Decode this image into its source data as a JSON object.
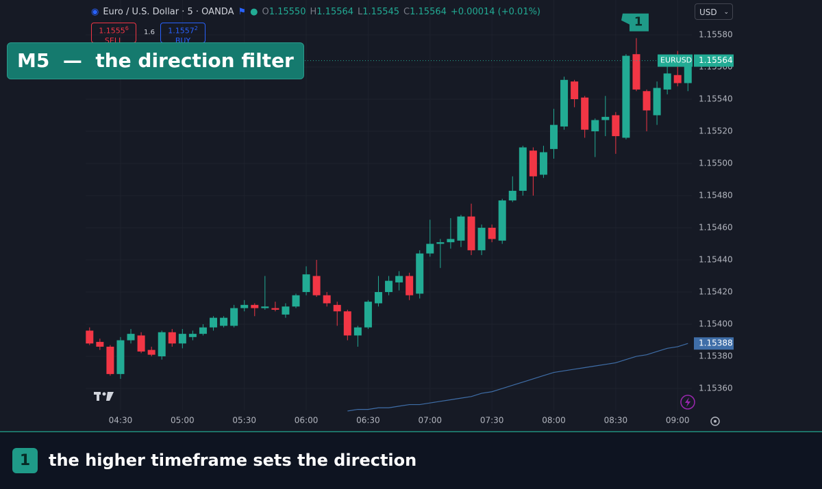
{
  "header": {
    "symbol": "Euro / U.S. Dollar · 5 · OANDA",
    "ohlc": [
      {
        "label": "O",
        "value": "1.15550"
      },
      {
        "label": "H",
        "value": "1.15564"
      },
      {
        "label": "L",
        "value": "1.15545"
      },
      {
        "label": "C",
        "value": "1.15564"
      }
    ],
    "change": "+0.00014 (+0.01%)",
    "currency": "USD"
  },
  "trade": {
    "sell_price": "1.1555",
    "sell_pip": "6",
    "sell_label": "SELL",
    "spread": "1.6",
    "buy_price": "1.1557",
    "buy_pip": "2",
    "buy_label": "BUY"
  },
  "overlay_title": "M5  —  the direction filter",
  "caption": {
    "badge": "1",
    "text": "the higher timeframe sets the direction"
  },
  "chart_data": {
    "type": "candlestick",
    "categories": [
      null,
      null,
      null,
      "04:30",
      null,
      null,
      null,
      null,
      null,
      "05:00",
      null,
      null,
      null,
      null,
      null,
      "05:30",
      null,
      null,
      null,
      null,
      null,
      "06:00",
      null,
      null,
      null,
      null,
      null,
      "06:30",
      null,
      null,
      null,
      null,
      null,
      "07:00",
      null,
      null,
      null,
      null,
      null,
      "07:30",
      null,
      null,
      null,
      null,
      null,
      "08:00",
      null,
      null,
      null,
      null,
      null,
      "08:30",
      null,
      null,
      null,
      null,
      null,
      "09:00",
      null
    ],
    "open": [
      1.15396,
      1.15389,
      1.15386,
      1.15369,
      1.1539,
      1.15393,
      1.15384,
      1.1538,
      1.15395,
      1.15388,
      1.15392,
      1.15394,
      1.15398,
      1.15399,
      1.15399,
      1.1541,
      1.15412,
      1.1541,
      1.1541,
      1.15406,
      1.15411,
      1.1542,
      1.1543,
      1.15418,
      1.15412,
      1.15408,
      1.15393,
      1.15398,
      1.15413,
      1.1542,
      1.15426,
      1.1543,
      1.15419,
      1.15444,
      1.1545,
      1.15451,
      1.15452,
      1.15467,
      1.15446,
      1.1546,
      1.15452,
      1.15477,
      1.15483,
      1.15508,
      1.15493,
      1.15509,
      1.15523,
      1.15551,
      1.15541,
      1.1552,
      1.15527,
      1.1553,
      1.15516,
      1.15568,
      1.15545,
      1.1553,
      1.15546,
      1.15555,
      1.1555
    ],
    "high": [
      1.15398,
      1.15391,
      1.15387,
      1.15392,
      1.15397,
      1.15395,
      1.15386,
      1.15396,
      1.15397,
      1.15397,
      1.15396,
      1.154,
      1.15405,
      1.15405,
      1.15412,
      1.15415,
      1.15413,
      1.1543,
      1.15414,
      1.15413,
      1.15419,
      1.15436,
      1.1544,
      1.1542,
      1.15414,
      1.15409,
      1.15399,
      1.15415,
      1.1543,
      1.1543,
      1.15433,
      1.15432,
      1.15446,
      1.15465,
      1.15453,
      1.15466,
      1.15468,
      1.15475,
      1.15462,
      1.15462,
      1.15478,
      1.15492,
      1.15511,
      1.1551,
      1.15511,
      1.15534,
      1.15554,
      1.15552,
      1.15542,
      1.15528,
      1.15542,
      1.15532,
      1.15568,
      1.15578,
      1.15546,
      1.15551,
      1.15566,
      1.1557,
      1.15564
    ],
    "low": [
      1.15387,
      1.15384,
      1.15368,
      1.15366,
      1.15388,
      1.15382,
      1.1538,
      1.15378,
      1.15386,
      1.15385,
      1.1539,
      1.15393,
      1.15396,
      1.15398,
      1.15398,
      1.15408,
      1.15405,
      1.15409,
      1.15408,
      1.15404,
      1.1541,
      1.15418,
      1.15417,
      1.15411,
      1.15399,
      1.1539,
      1.15386,
      1.15397,
      1.15411,
      1.15418,
      1.15421,
      1.15415,
      1.15416,
      1.15442,
      1.15435,
      1.15447,
      1.15448,
      1.15443,
      1.15443,
      1.15451,
      1.1545,
      1.15476,
      1.1548,
      1.1548,
      1.15491,
      1.15503,
      1.15521,
      1.15535,
      1.15516,
      1.15504,
      1.15517,
      1.15506,
      1.15515,
      1.15545,
      1.1552,
      1.15524,
      1.15543,
      1.15548,
      1.15545
    ],
    "close": [
      1.15388,
      1.15386,
      1.15369,
      1.1539,
      1.15394,
      1.15383,
      1.15381,
      1.15395,
      1.15388,
      1.15394,
      1.15394,
      1.15398,
      1.15404,
      1.15404,
      1.1541,
      1.15412,
      1.1541,
      1.15411,
      1.15409,
      1.15411,
      1.15418,
      1.15431,
      1.15418,
      1.15413,
      1.15408,
      1.15393,
      1.15398,
      1.15414,
      1.1542,
      1.15427,
      1.1543,
      1.15418,
      1.15444,
      1.1545,
      1.15451,
      1.15453,
      1.15467,
      1.15446,
      1.1546,
      1.15453,
      1.15477,
      1.15483,
      1.1551,
      1.15492,
      1.15507,
      1.15524,
      1.15552,
      1.1554,
      1.15521,
      1.15527,
      1.15529,
      1.15517,
      1.15567,
      1.15546,
      1.15533,
      1.15547,
      1.15556,
      1.1555,
      1.15564
    ],
    "up_color": "#22ab94",
    "down_color": "#f23645",
    "ma": {
      "color": "#3f6ea8",
      "values": [
        null,
        null,
        null,
        null,
        null,
        null,
        null,
        null,
        null,
        null,
        null,
        null,
        null,
        null,
        null,
        null,
        null,
        null,
        null,
        null,
        null,
        null,
        null,
        null,
        null,
        1.15346,
        1.15347,
        1.15347,
        1.15348,
        1.15348,
        1.15349,
        1.1535,
        1.1535,
        1.15351,
        1.15352,
        1.15353,
        1.15354,
        1.15355,
        1.15357,
        1.15358,
        1.1536,
        1.15362,
        1.15364,
        1.15366,
        1.15368,
        1.1537,
        1.15371,
        1.15372,
        1.15373,
        1.15374,
        1.15375,
        1.15376,
        1.15378,
        1.1538,
        1.15381,
        1.15383,
        1.15385,
        1.15386,
        1.15388
      ],
      "value_label": "1.15388"
    },
    "last_symbol": "EURUSD",
    "last_price_label": "1.15564",
    "annotation": {
      "text": "1",
      "index": 53
    },
    "ylim": [
      1.153464,
      1.156017
    ],
    "yticks": [
      {
        "value": 1.1558,
        "label": "1.15580"
      },
      {
        "value": 1.1556,
        "label": "1.15560"
      },
      {
        "value": 1.1554,
        "label": "1.15540"
      },
      {
        "value": 1.1552,
        "label": "1.15520"
      },
      {
        "value": 1.155,
        "label": "1.15500"
      },
      {
        "value": 1.1548,
        "label": "1.15480"
      },
      {
        "value": 1.1546,
        "label": "1.15460"
      },
      {
        "value": 1.1544,
        "label": "1.15440"
      },
      {
        "value": 1.1542,
        "label": "1.15420"
      },
      {
        "value": 1.154,
        "label": "1.15400"
      },
      {
        "value": 1.1538,
        "label": "1.15380"
      },
      {
        "value": 1.1536,
        "label": "1.15360"
      }
    ],
    "grid": true
  }
}
